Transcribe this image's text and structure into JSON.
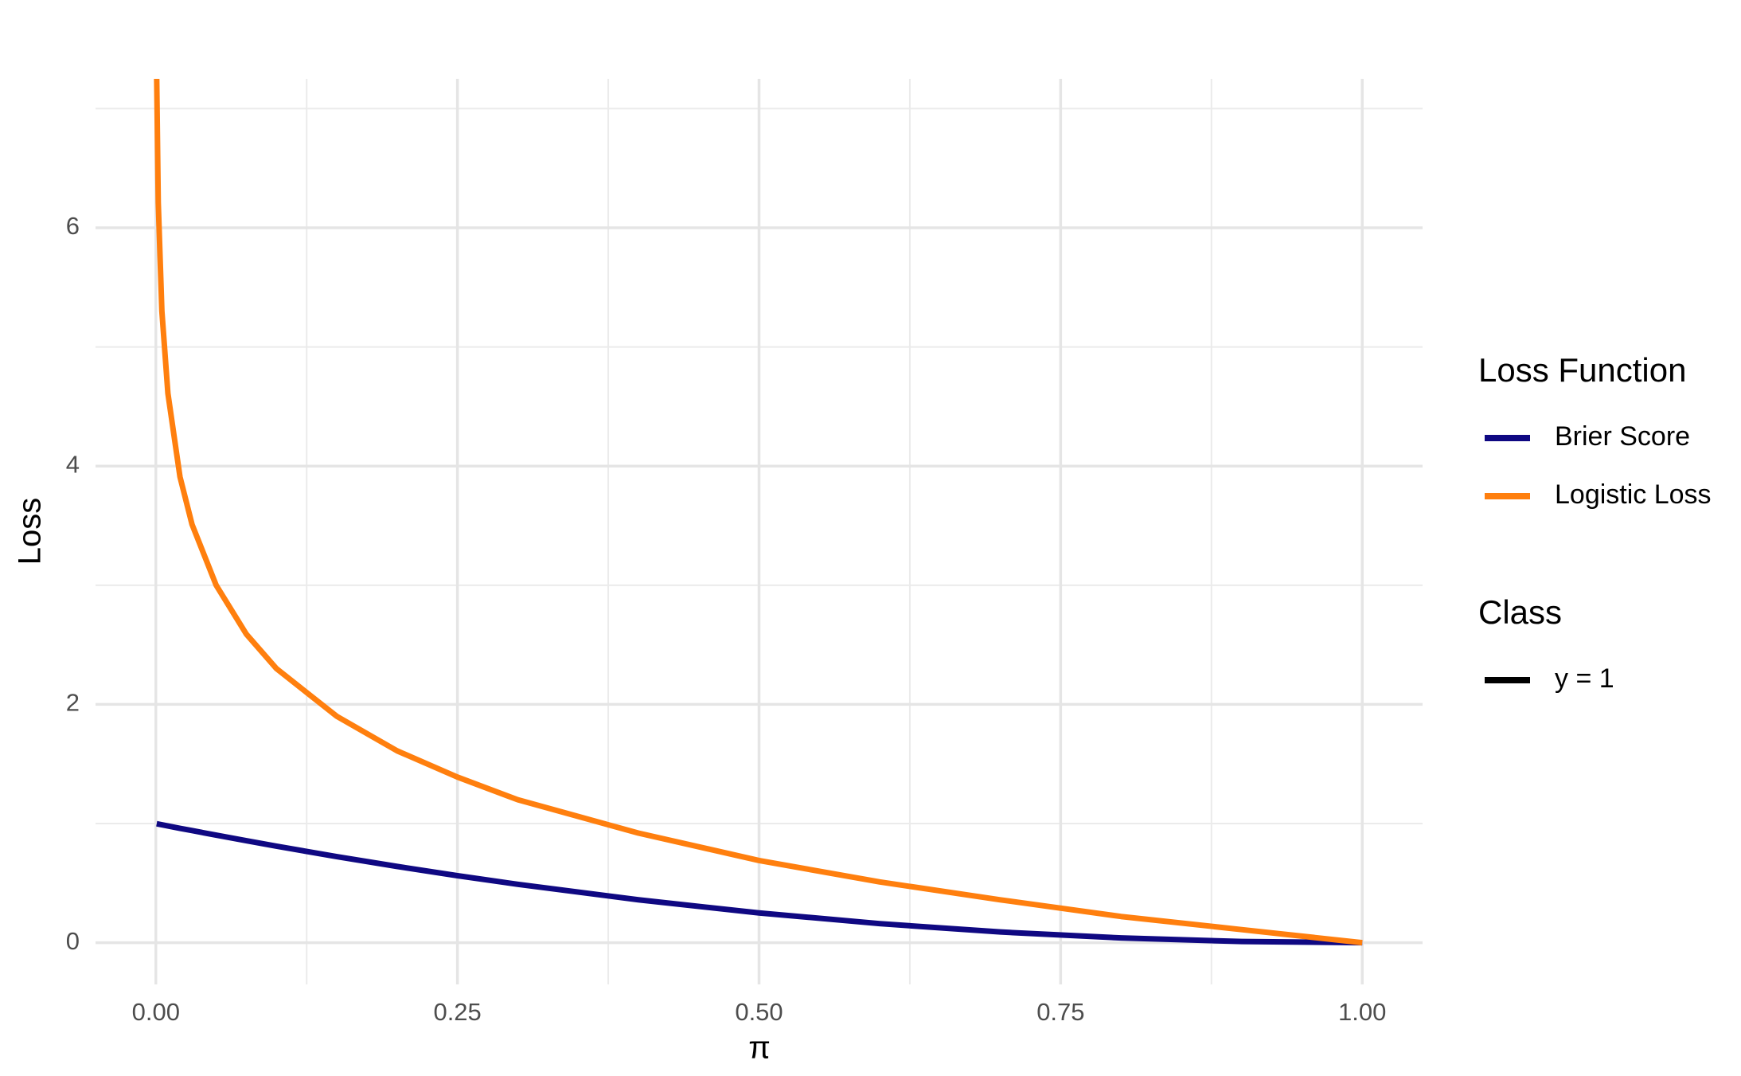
{
  "chart_data": {
    "type": "line",
    "x_label": "π",
    "y_label": "Loss",
    "x": [
      0.0007,
      0.002,
      0.005,
      0.01,
      0.02,
      0.03,
      0.05,
      0.075,
      0.1,
      0.15,
      0.2,
      0.25,
      0.3,
      0.4,
      0.5,
      0.6,
      0.7,
      0.8,
      0.9,
      1.0
    ],
    "series": [
      {
        "name": "Brier Score",
        "color": "#0f0882",
        "values": [
          0.9986,
          0.996,
          0.99,
          0.98,
          0.96,
          0.941,
          0.9025,
          0.856,
          0.81,
          0.7225,
          0.64,
          0.5625,
          0.49,
          0.36,
          0.25,
          0.16,
          0.09,
          0.04,
          0.01,
          0
        ]
      },
      {
        "name": "Logistic Loss",
        "color": "#ff7f0e",
        "values": [
          7.26,
          6.21,
          5.3,
          4.61,
          3.91,
          3.51,
          3.0,
          2.59,
          2.3,
          1.9,
          1.61,
          1.39,
          1.2,
          0.92,
          0.69,
          0.51,
          0.36,
          0.22,
          0.11,
          0
        ]
      }
    ],
    "legend_title": "Loss Function",
    "class_legend": {
      "title": "Class",
      "entries": [
        {
          "label": "y = 1",
          "color": "#000000"
        }
      ]
    },
    "xlim": [
      -0.05,
      1.05
    ],
    "ylim": [
      -0.35,
      7.25
    ],
    "xticks": [
      {
        "value": 0,
        "label": "0.00"
      },
      0.25,
      {
        "value": 0.5,
        "label": "0.50"
      },
      0.75,
      {
        "value": 1,
        "label": "1.00"
      }
    ],
    "yticks": [
      0,
      2,
      4,
      6
    ],
    "xminor_ticks": [
      0.125,
      0.375,
      0.625,
      0.875
    ],
    "yminor_ticks": [
      1,
      3,
      5,
      7
    ],
    "grid": true,
    "legend_position": "right"
  }
}
